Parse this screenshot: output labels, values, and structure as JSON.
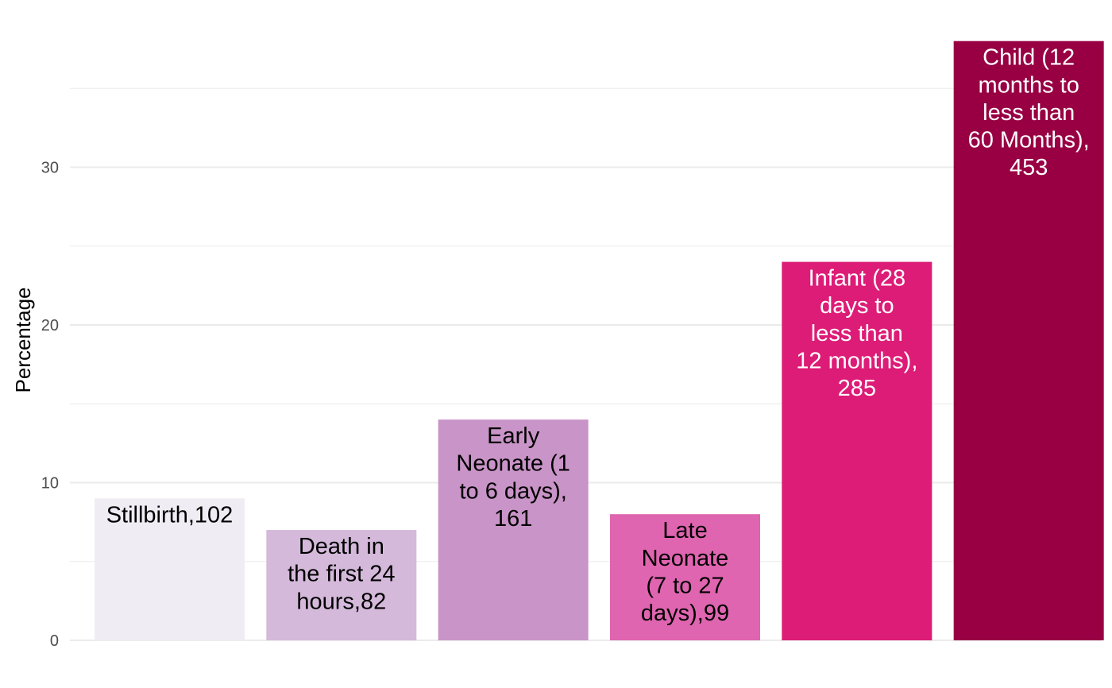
{
  "chart_data": {
    "type": "bar",
    "title": "",
    "xlabel": "",
    "ylabel": "Percentage",
    "ylim": [
      0,
      38
    ],
    "yticks": [
      0,
      10,
      20,
      30
    ],
    "grid": true,
    "legend": "none",
    "bars": [
      {
        "value": 9,
        "lines": [
          "Stillbirth,102"
        ],
        "color": "#f0ecf4",
        "text_color": "#000000"
      },
      {
        "value": 7,
        "lines": [
          "Death in",
          "the first 24",
          "hours,82"
        ],
        "color": "#d4b9da",
        "text_color": "#000000"
      },
      {
        "value": 14,
        "lines": [
          "Early",
          "Neonate (1",
          "to 6 days),",
          "161"
        ],
        "color": "#c994c7",
        "text_color": "#000000"
      },
      {
        "value": 8,
        "lines": [
          "Late",
          "Neonate",
          "(7 to 27",
          "days),99"
        ],
        "color": "#df65b0",
        "text_color": "#000000"
      },
      {
        "value": 24,
        "lines": [
          "Infant (28",
          "days to",
          "less than",
          "12 months),",
          "285"
        ],
        "color": "#dd1c77",
        "text_color": "#ffffff"
      },
      {
        "value": 38,
        "lines": [
          "Child (12",
          "months to",
          "less than",
          "60 Months),",
          "453"
        ],
        "color": "#980043",
        "text_color": "#ffffff"
      }
    ]
  }
}
